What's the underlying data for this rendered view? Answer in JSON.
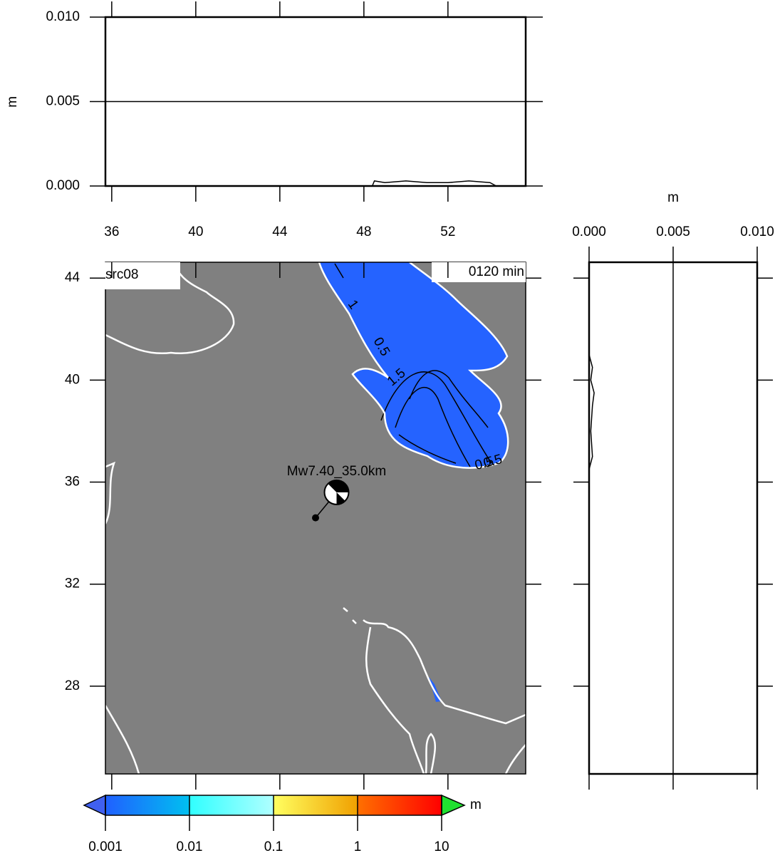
{
  "top_profile": {
    "ylabel": "m",
    "xlim": [
      35.7,
      55.7
    ],
    "ylim": [
      0,
      0.01
    ],
    "yticks": [
      {
        "value": 0,
        "label": "0.000"
      },
      {
        "value": 0.005,
        "label": "0.005"
      },
      {
        "value": 0.01,
        "label": "0.010"
      }
    ],
    "x": [
      48.4,
      48.5,
      49,
      50,
      51,
      52,
      53,
      54,
      54.3
    ],
    "values": [
      0,
      0.0003,
      0.0002,
      0.0003,
      0.0002,
      0.0002,
      0.0003,
      0.0002,
      0
    ]
  },
  "map": {
    "title": "src08",
    "time_label": "0120 min",
    "event_label": "Mw7.40_35.0km",
    "xlim": [
      35.7,
      55.7
    ],
    "ylim": [
      24.56,
      44.62
    ],
    "xticks": [
      36,
      40,
      44,
      48,
      52
    ],
    "yticks": [
      28,
      32,
      36,
      40,
      44
    ],
    "epicenter": [
      45.7,
      34.6
    ],
    "mechanism": [
      46.7,
      35.6
    ],
    "contour_labels": [
      "1",
      "0.5",
      "1.5",
      "0.5",
      "0.5"
    ]
  },
  "right_profile": {
    "xlabel": "m",
    "xlim": [
      0,
      0.01
    ],
    "xticks": [
      {
        "value": 0,
        "label": "0.000"
      },
      {
        "value": 0.005,
        "label": "0.005"
      },
      {
        "value": 0.01,
        "label": "0.010"
      }
    ],
    "y": [
      36.5,
      37,
      38,
      39,
      39.5,
      40,
      40.5,
      41
    ],
    "values": [
      0,
      0.0002,
      0.0001,
      0.0002,
      0.0003,
      0.0001,
      0.0002,
      0
    ]
  },
  "colorbar": {
    "unit": "m",
    "ticks": [
      {
        "value": 0.001,
        "label": "0.001"
      },
      {
        "value": 0.01,
        "label": "0.01"
      },
      {
        "value": 0.1,
        "label": "0.1"
      },
      1,
      10
    ],
    "colors": [
      [
        "#2060ff",
        "#00c0f0"
      ],
      [
        "#30ffff",
        "#b0ffff"
      ],
      [
        "#ffff60",
        "#f0a000"
      ],
      [
        "#ff7000",
        "#ff0000"
      ]
    ],
    "under_color": "#4060f0",
    "over_color": "#20e030"
  }
}
